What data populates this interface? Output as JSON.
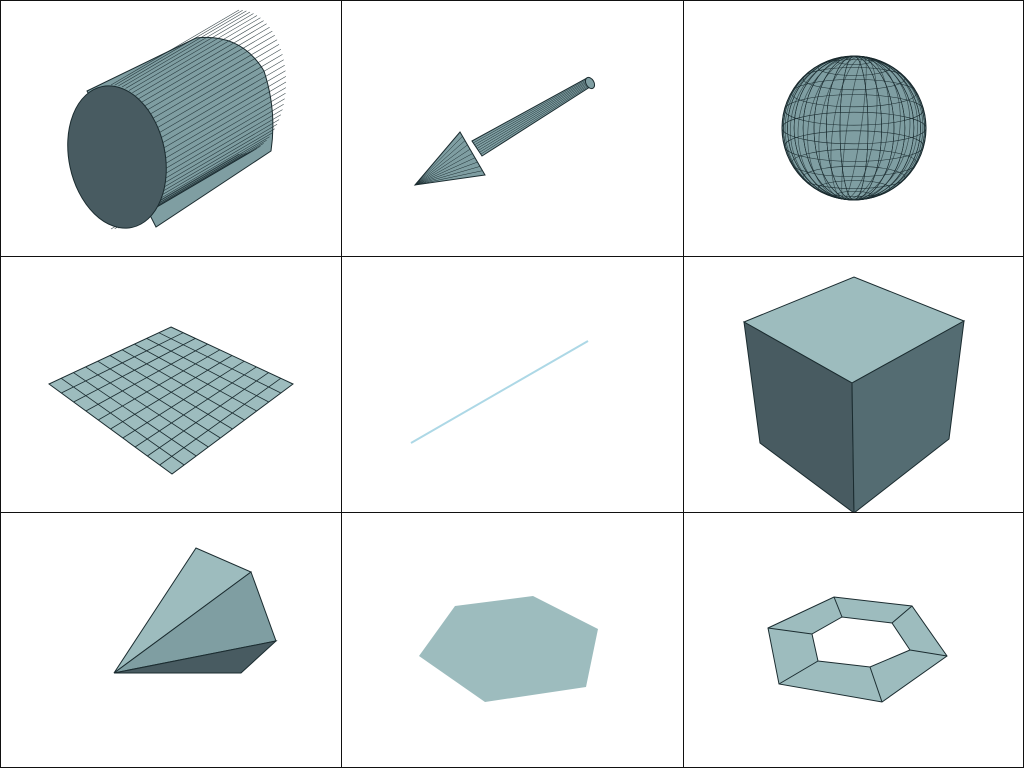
{
  "viewer": {
    "title": "",
    "colors": {
      "background": "#ffffff",
      "border": "#111111",
      "fill_light": "#9dbcbe",
      "fill_mid": "#7f9ea2",
      "fill_dark": "#546c72",
      "fill_darkest": "#485b61",
      "edge": "#1b2c30",
      "line": "#add8e6"
    },
    "panels": [
      {
        "id": "cylinder",
        "shape": "cylinder",
        "icon": "cylinder-icon"
      },
      {
        "id": "arrow",
        "shape": "arrow",
        "icon": "arrow-icon"
      },
      {
        "id": "sphere",
        "shape": "sphere",
        "icon": "sphere-icon"
      },
      {
        "id": "plane",
        "shape": "plane-grid",
        "icon": "grid-plane-icon"
      },
      {
        "id": "line",
        "shape": "line",
        "icon": "line-icon"
      },
      {
        "id": "cube",
        "shape": "cube",
        "icon": "cube-icon"
      },
      {
        "id": "cone",
        "shape": "cone",
        "icon": "cone-icon"
      },
      {
        "id": "hexagon",
        "shape": "regular-polygon",
        "icon": "hexagon-icon"
      },
      {
        "id": "disk",
        "shape": "disk-ring",
        "icon": "ring-icon"
      }
    ]
  }
}
